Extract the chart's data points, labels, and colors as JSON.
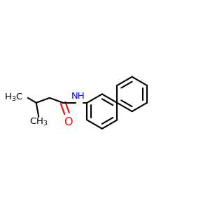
{
  "bg_color": "#ffffff",
  "bond_color": "#000000",
  "O_color": "#ff0000",
  "N_color": "#0000ff",
  "line_width": 1.5,
  "font_size": 9.5,
  "fig_width": 3.0,
  "fig_height": 3.0,
  "dpi": 100,
  "xlim": [
    0,
    1
  ],
  "ylim": [
    0,
    1
  ]
}
